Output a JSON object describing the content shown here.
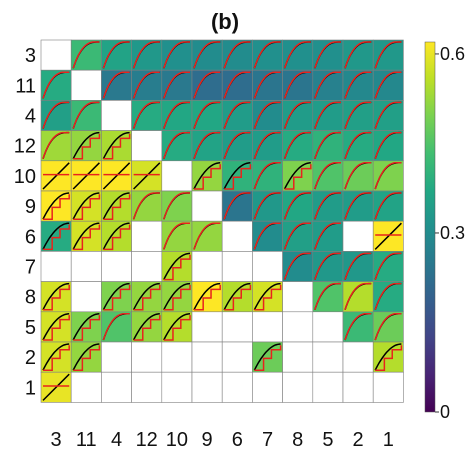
{
  "chart_data": {
    "type": "heatmap",
    "title": "(b)",
    "row_labels": [
      "3",
      "11",
      "4",
      "12",
      "10",
      "9",
      "6",
      "7",
      "8",
      "5",
      "2",
      "1"
    ],
    "col_labels": [
      "3",
      "11",
      "4",
      "12",
      "10",
      "9",
      "6",
      "7",
      "8",
      "5",
      "2",
      "1"
    ],
    "colorscale": "viridis",
    "colorbar": {
      "min": 0,
      "max": 0.62,
      "ticks": [
        "0",
        "0.3",
        "0.6"
      ],
      "tick_values": [
        0,
        0.3,
        0.6
      ]
    },
    "values": [
      [
        null,
        0.42,
        0.36,
        0.33,
        0.31,
        0.3,
        0.3,
        0.31,
        0.31,
        0.31,
        0.33,
        0.33
      ],
      [
        0.38,
        null,
        0.25,
        0.26,
        0.25,
        0.22,
        0.22,
        0.24,
        0.24,
        0.27,
        0.29,
        0.29
      ],
      [
        0.35,
        0.42,
        null,
        0.38,
        0.37,
        0.37,
        0.34,
        0.3,
        0.34,
        0.34,
        0.35,
        0.35
      ],
      [
        0.53,
        0.52,
        0.54,
        null,
        0.38,
        0.36,
        0.34,
        0.34,
        0.38,
        0.4,
        0.38,
        0.37
      ],
      [
        0.62,
        0.62,
        0.62,
        0.58,
        null,
        0.52,
        0.4,
        0.4,
        0.5,
        0.45,
        0.48,
        0.5
      ],
      [
        0.62,
        0.58,
        0.55,
        0.52,
        0.5,
        null,
        0.24,
        0.33,
        0.37,
        0.34,
        0.34,
        0.36
      ],
      [
        0.38,
        0.58,
        0.55,
        null,
        0.52,
        0.52,
        null,
        0.3,
        0.35,
        0.34,
        null,
        0.62
      ],
      [
        null,
        null,
        null,
        null,
        0.55,
        null,
        null,
        null,
        0.3,
        0.33,
        0.33,
        0.38
      ],
      [
        0.58,
        null,
        0.5,
        0.52,
        0.52,
        0.62,
        0.55,
        0.58,
        null,
        0.45,
        0.55,
        0.38
      ],
      [
        0.58,
        0.5,
        0.45,
        0.52,
        0.55,
        null,
        null,
        null,
        null,
        null,
        0.42,
        0.48
      ],
      [
        0.58,
        0.52,
        null,
        null,
        null,
        null,
        null,
        0.48,
        null,
        null,
        null,
        0.55
      ],
      [
        0.6,
        null,
        null,
        null,
        null,
        null,
        null,
        null,
        null,
        null,
        null,
        null
      ]
    ],
    "curve_styles": [
      [
        "empty",
        "black-red",
        "black-red",
        "black-red",
        "black-red",
        "black-red",
        "black-red",
        "black-red",
        "black-red",
        "black-red",
        "black-red",
        "black-red"
      ],
      [
        "black-red",
        "empty",
        "black-red",
        "black-red",
        "black-red",
        "black-red",
        "black-red",
        "black-red",
        "black-red",
        "black-red",
        "black-red",
        "black-red"
      ],
      [
        "black-red",
        "black-red",
        "empty",
        "black-red",
        "black-red",
        "black-red",
        "black-red",
        "black-red",
        "black-red",
        "black-red",
        "black-red",
        "black-red"
      ],
      [
        "black-red",
        "step",
        "step",
        "empty",
        "black-red",
        "black-red",
        "black-red",
        "black-red",
        "black-red",
        "black-red",
        "black-red",
        "black-red"
      ],
      [
        "diag",
        "diag",
        "diag",
        "diag",
        "empty",
        "step",
        "step",
        "black-red",
        "step",
        "black-red",
        "black-red",
        "black-red"
      ],
      [
        "step",
        "step",
        "step",
        "black-red",
        "black-red",
        "empty",
        "black-red",
        "black-red",
        "black-red",
        "black-red",
        "black-red",
        "black-red"
      ],
      [
        "step",
        "step",
        "step",
        "empty",
        "black-red",
        "black-red",
        "empty",
        "black-red",
        "black-red",
        "black-red",
        "empty",
        "diag"
      ],
      [
        "empty",
        "empty",
        "empty",
        "empty",
        "step",
        "empty",
        "empty",
        "empty",
        "black-red",
        "black-red",
        "black-red",
        "black-red"
      ],
      [
        "step",
        "empty",
        "step",
        "step",
        "step",
        "step",
        "step",
        "step",
        "empty",
        "black-red",
        "black-red",
        "black-red"
      ],
      [
        "step",
        "step",
        "black-red",
        "step",
        "step",
        "empty",
        "empty",
        "empty",
        "empty",
        "empty",
        "black-red",
        "black-red"
      ],
      [
        "step",
        "step",
        "empty",
        "empty",
        "empty",
        "empty",
        "empty",
        "step",
        "empty",
        "empty",
        "empty",
        "step"
      ],
      [
        "diag",
        "empty",
        "empty",
        "empty",
        "empty",
        "empty",
        "empty",
        "empty",
        "empty",
        "empty",
        "empty",
        "empty"
      ]
    ]
  }
}
